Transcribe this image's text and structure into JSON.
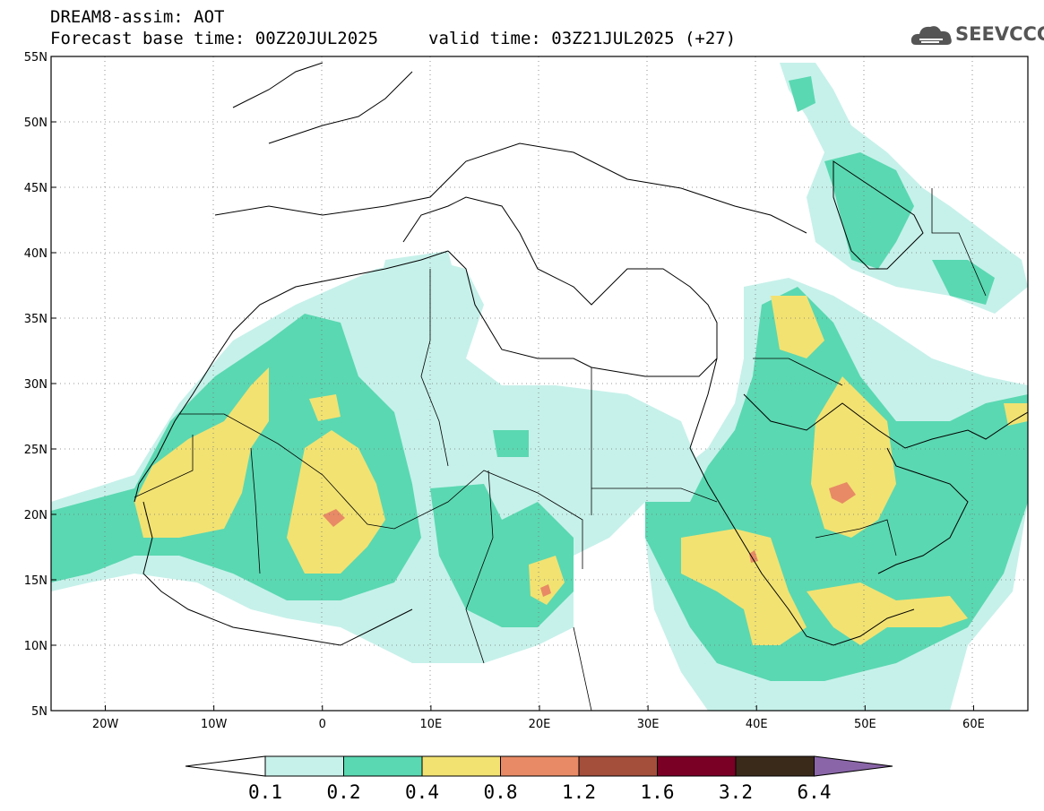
{
  "header": {
    "title": "DREAM8-assim: AOT",
    "base_time": "Forecast base time: 00Z20JUL2025",
    "valid_time": "valid time: 03Z21JUL2025 (+27)",
    "logo_text": "SEEVCCC",
    "logo_icon": "cloud-icon"
  },
  "map": {
    "lon_range": [
      -25,
      65
    ],
    "lat_range": [
      5,
      55
    ],
    "lon_ticks": [
      "20W",
      "10W",
      "0",
      "10E",
      "20E",
      "30E",
      "40E",
      "50E",
      "60E"
    ],
    "lat_ticks": [
      "55N",
      "50N",
      "45N",
      "40N",
      "35N",
      "30N",
      "25N",
      "20N",
      "15N",
      "10N",
      "5N"
    ],
    "grid": "dotted",
    "field": "aerosol optical thickness"
  },
  "colorbar": {
    "labels": [
      "0.1",
      "0.2",
      "0.4",
      "0.8",
      "1.2",
      "1.6",
      "3.2",
      "6.4"
    ],
    "colors": [
      "#ffffff",
      "#c6f1ea",
      "#5ad8b1",
      "#f2e272",
      "#e88a65",
      "#a44e3c",
      "#7a0026",
      "#3a2a1a",
      "#8a66a8"
    ]
  }
}
